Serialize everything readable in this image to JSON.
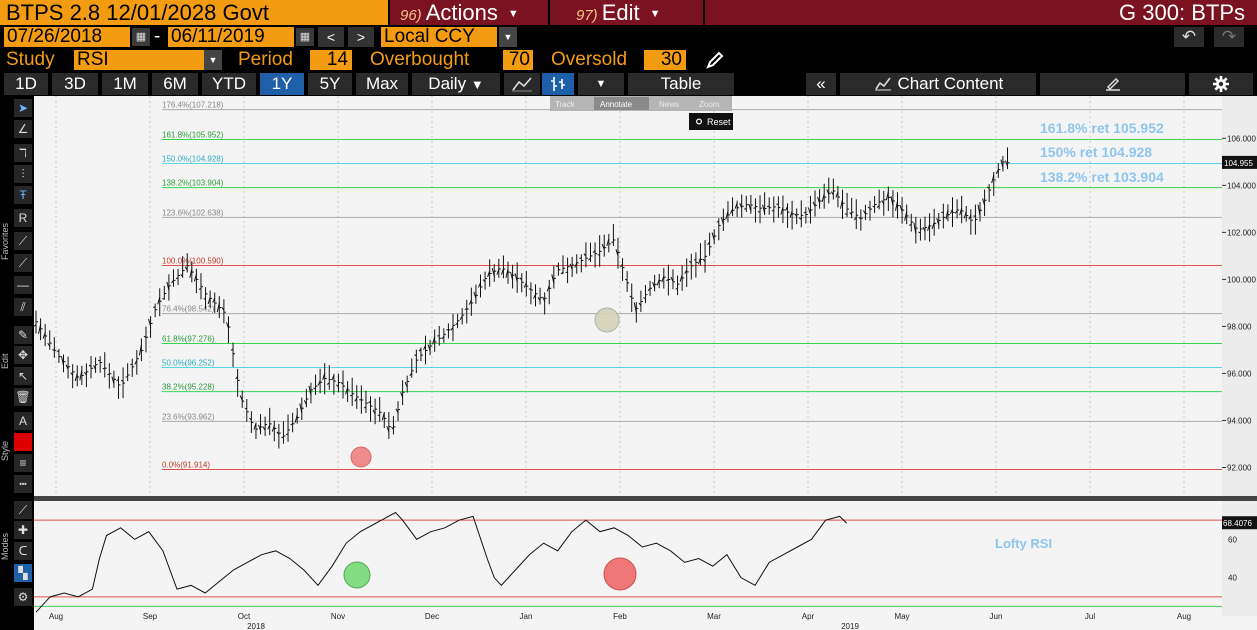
{
  "header": {
    "security": "BTPS 2.8 12/01/2028 Govt",
    "actions": {
      "num": "96)",
      "label": "Actions"
    },
    "edit": {
      "num": "97)",
      "label": "Edit"
    },
    "right_title": "G 300: BTPs"
  },
  "range": {
    "start_date": "07/26/2018",
    "separator": "-",
    "end_date": "06/11/2019",
    "prev": "<",
    "next": ">",
    "currency": "Local CCY"
  },
  "study": {
    "label": "Study",
    "value": "RSI",
    "period_label": "Period",
    "period": "14",
    "overbought_label": "Overbought",
    "overbought": "70",
    "oversold_label": "Oversold",
    "oversold": "30"
  },
  "tabs": [
    "1D",
    "3D",
    "1M",
    "6M",
    "YTD",
    "1Y",
    "5Y",
    "Max"
  ],
  "active_tab": "1Y",
  "toolbar": {
    "frequency": "Daily",
    "table": "Table",
    "chart_content": "Chart Content",
    "collapse": "«"
  },
  "overlay_menu": {
    "track": "Track",
    "annotate": "Annotate",
    "news": "News",
    "zoom": "Zoom",
    "reset": "Reset"
  },
  "side_labels": {
    "favorites": "Favorites",
    "edit": "Edit",
    "style": "Style",
    "modes": "Modes"
  },
  "colors": {
    "orange": "#f39c12",
    "maroon": "#7a1220",
    "active_tab": "#1f5fa8",
    "fib_green": "#39d353",
    "fib_red": "#d9534f",
    "fib_cyan": "#5bd5e6",
    "annotation_blue": "#8ec5ef"
  },
  "icons": [
    "calendar-icon",
    "undo-icon",
    "redo-icon",
    "pencil-icon",
    "line-chart-icon",
    "candle-chart-icon",
    "settings-icon",
    "edit-chart-icon",
    "chart-content-icon"
  ],
  "annotations": {
    "fib1618": "161.8% ret 105.952",
    "fib150": "150% ret 104.928",
    "fib1382": "138.2% ret 103.904",
    "lofty": "Lofty RSI"
  },
  "chart_data": [
    {
      "type": "bar",
      "title": "",
      "ylim": [
        91,
        107.8
      ],
      "y_ticks": [
        "106.000",
        "104.000",
        "102.000",
        "100.000",
        "98.000",
        "96.000",
        "94.000",
        "92.000"
      ],
      "last_price": "104.955",
      "fib_levels": [
        {
          "label": "176.4%(107.218)",
          "value": 107.218
        },
        {
          "label": "161.8%(105.952)",
          "value": 105.952
        },
        {
          "label": "150.0%(104.928)",
          "value": 104.928
        },
        {
          "label": "138.2%(103.904)",
          "value": 103.904
        },
        {
          "label": "123.6%(102.638)",
          "value": 102.638
        },
        {
          "label": "100.0%(100.590)",
          "value": 100.59
        },
        {
          "label": "76.4%(98.542)",
          "value": 98.542
        },
        {
          "label": "61.8%(97.276)",
          "value": 97.276
        },
        {
          "label": "50.0%(96.252)",
          "value": 96.252
        },
        {
          "label": "38.2%(95.228)",
          "value": 95.228
        },
        {
          "label": "23.6%(93.962)",
          "value": 93.962
        },
        {
          "label": "0.0%(91.914)",
          "value": 91.914
        }
      ],
      "x_labels": [
        "Aug",
        "Sep",
        "Oct",
        "Nov",
        "Dec",
        "Jan",
        "Feb",
        "Mar",
        "Apr",
        "May",
        "Jun",
        "Jul",
        "Aug"
      ],
      "year_labels": [
        "2018",
        "2019"
      ],
      "price_path": [
        [
          0,
          98.2
        ],
        [
          0.03,
          96.8
        ],
        [
          0.06,
          95.8
        ],
        [
          0.09,
          96.5
        ],
        [
          0.12,
          95.4
        ],
        [
          0.15,
          97.0
        ],
        [
          0.17,
          98.8
        ],
        [
          0.19,
          99.8
        ],
        [
          0.215,
          100.6
        ],
        [
          0.24,
          99.4
        ],
        [
          0.27,
          98.5
        ],
        [
          0.29,
          95.0
        ],
        [
          0.31,
          93.6
        ],
        [
          0.33,
          93.9
        ],
        [
          0.35,
          93.3
        ],
        [
          0.37,
          94.1
        ],
        [
          0.39,
          95.3
        ],
        [
          0.41,
          95.8
        ],
        [
          0.43,
          95.6
        ],
        [
          0.45,
          95.1
        ],
        [
          0.47,
          94.7
        ],
        [
          0.49,
          94.3
        ],
        [
          0.505,
          93.5
        ],
        [
          0.52,
          95.2
        ],
        [
          0.54,
          96.6
        ],
        [
          0.56,
          97.2
        ],
        [
          0.58,
          97.7
        ],
        [
          0.6,
          98.3
        ],
        [
          0.62,
          99.1
        ],
        [
          0.64,
          100.2
        ],
        [
          0.66,
          100.5
        ],
        [
          0.68,
          100.1
        ],
        [
          0.7,
          99.6
        ],
        [
          0.72,
          99.1
        ],
        [
          0.74,
          100.4
        ],
        [
          0.76,
          100.6
        ],
        [
          0.78,
          100.9
        ],
        [
          0.8,
          101.2
        ],
        [
          0.82,
          101.7
        ],
        [
          0.84,
          99.7
        ],
        [
          0.85,
          98.7
        ],
        [
          0.87,
          99.6
        ],
        [
          0.89,
          100.1
        ],
        [
          0.91,
          99.8
        ],
        [
          0.93,
          100.6
        ],
        [
          0.95,
          101.0
        ],
        [
          0.97,
          102.4
        ],
        [
          0.99,
          103.0
        ],
        [
          1.01,
          103.2
        ],
        [
          1.03,
          103.0
        ],
        [
          1.05,
          103.1
        ],
        [
          1.07,
          102.8
        ],
        [
          1.09,
          102.7
        ],
        [
          1.11,
          103.3
        ],
        [
          1.13,
          103.8
        ],
        [
          1.15,
          103.0
        ],
        [
          1.17,
          102.6
        ],
        [
          1.19,
          103.2
        ],
        [
          1.21,
          103.5
        ],
        [
          1.23,
          102.9
        ],
        [
          1.25,
          102.1
        ],
        [
          1.27,
          102.3
        ],
        [
          1.29,
          102.7
        ],
        [
          1.31,
          103.0
        ],
        [
          1.33,
          102.4
        ],
        [
          1.34,
          103.0
        ],
        [
          1.355,
          104.0
        ],
        [
          1.37,
          105.0
        ],
        [
          1.38,
          104.955
        ]
      ],
      "rsi": {
        "ylim": [
          20,
          80
        ],
        "levels": [
          70,
          30
        ],
        "ticks": [
          "60",
          "40"
        ],
        "last": "68.4076",
        "path": [
          [
            0,
            22
          ],
          [
            0.02,
            30
          ],
          [
            0.04,
            32
          ],
          [
            0.06,
            30
          ],
          [
            0.08,
            34
          ],
          [
            0.09,
            50
          ],
          [
            0.1,
            62
          ],
          [
            0.12,
            66
          ],
          [
            0.14,
            60
          ],
          [
            0.16,
            64
          ],
          [
            0.18,
            54
          ],
          [
            0.2,
            34
          ],
          [
            0.22,
            36
          ],
          [
            0.24,
            32
          ],
          [
            0.26,
            38
          ],
          [
            0.28,
            44
          ],
          [
            0.3,
            48
          ],
          [
            0.32,
            52
          ],
          [
            0.34,
            54
          ],
          [
            0.36,
            50
          ],
          [
            0.38,
            44
          ],
          [
            0.39,
            40
          ],
          [
            0.4,
            36
          ],
          [
            0.42,
            46
          ],
          [
            0.44,
            58
          ],
          [
            0.46,
            64
          ],
          [
            0.48,
            68
          ],
          [
            0.5,
            72
          ],
          [
            0.51,
            74
          ],
          [
            0.52,
            70
          ],
          [
            0.54,
            60
          ],
          [
            0.56,
            64
          ],
          [
            0.58,
            66
          ],
          [
            0.6,
            70
          ],
          [
            0.62,
            72
          ],
          [
            0.64,
            50
          ],
          [
            0.65,
            40
          ],
          [
            0.66,
            36
          ],
          [
            0.68,
            44
          ],
          [
            0.7,
            52
          ],
          [
            0.72,
            58
          ],
          [
            0.74,
            54
          ],
          [
            0.76,
            64
          ],
          [
            0.78,
            70
          ],
          [
            0.8,
            64
          ],
          [
            0.82,
            66
          ],
          [
            0.84,
            62
          ],
          [
            0.86,
            56
          ],
          [
            0.88,
            58
          ],
          [
            0.9,
            54
          ],
          [
            0.92,
            48
          ],
          [
            0.94,
            50
          ],
          [
            0.96,
            46
          ],
          [
            0.98,
            52
          ],
          [
            1.0,
            40
          ],
          [
            1.02,
            36
          ],
          [
            1.04,
            48
          ],
          [
            1.06,
            52
          ],
          [
            1.08,
            56
          ],
          [
            1.1,
            60
          ],
          [
            1.12,
            70
          ],
          [
            1.14,
            72
          ],
          [
            1.15,
            68.4
          ]
        ]
      }
    }
  ]
}
